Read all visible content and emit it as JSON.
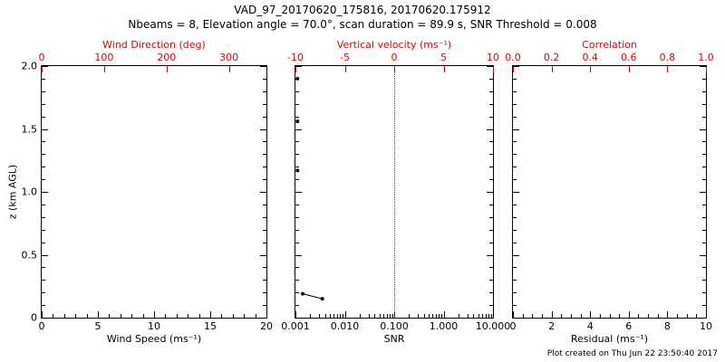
{
  "title": "VAD_97_20170620_175816, 20170620.175912",
  "subtitle": "Nbeams = 8, Elevation angle = 70.0°, scan duration = 89.9 s, SNR Threshold = 0.008",
  "footer": "Plot created on Thu Jun 22 23:50:40 2017",
  "y_axis_label": "z (km AGL)",
  "colors": {
    "axis": "#000000",
    "secondary_axis": "#e60000",
    "reference_line": "#e60000",
    "data": "#000000",
    "background": "#ffffff"
  },
  "chart_data": [
    {
      "type": "scatter",
      "name": "wind-speed-panel",
      "xlabel": "Wind Speed (ms⁻¹)",
      "x_range": [
        0,
        20
      ],
      "x_ticks": [
        0,
        5,
        10,
        15,
        20
      ],
      "x_tick_labels": [
        "0",
        "5",
        "10",
        "15",
        "20"
      ],
      "x_minor_step": 1,
      "top_label": "Wind Direction (deg)",
      "top_range": [
        0,
        360
      ],
      "top_ticks": [
        0,
        100,
        200,
        300
      ],
      "top_tick_labels": [
        "0",
        "100",
        "200",
        "300"
      ],
      "y_range": [
        0,
        2
      ],
      "y_ticks": [
        0,
        0.5,
        1,
        1.5,
        2
      ],
      "y_tick_labels": [
        "0",
        "0.5",
        "1.0",
        "1.5",
        "2.0"
      ],
      "y_minor_step": 0.1,
      "show_y_labels": true,
      "points": []
    },
    {
      "type": "scatter",
      "name": "snr-panel",
      "xlabel": "SNR",
      "x_scale": "log",
      "x_range": [
        0.001,
        10
      ],
      "x_ticks": [
        0.001,
        0.01,
        0.1,
        1,
        10
      ],
      "x_tick_labels": [
        "0.001",
        "0.010",
        "0.100",
        "1.000",
        "10.000"
      ],
      "top_label": "Vertical velocity (ms⁻¹)",
      "top_range": [
        -10,
        10
      ],
      "top_ticks": [
        -10,
        -5,
        0,
        5,
        10
      ],
      "top_tick_labels": [
        "-10",
        "-5",
        "0",
        "5",
        "10"
      ],
      "y_range": [
        0,
        2
      ],
      "y_ticks": [
        0,
        0.5,
        1,
        1.5,
        2
      ],
      "y_minor_step": 0.1,
      "show_y_labels": false,
      "reference_line_x": 0.1,
      "points": [
        {
          "x": 0.0011,
          "z": 1.9
        },
        {
          "x": 0.0011,
          "z": 1.56
        },
        {
          "x": 0.0011,
          "z": 1.17
        }
      ],
      "line_points": [
        {
          "x": 0.0014,
          "z": 0.19
        },
        {
          "x": 0.0035,
          "z": 0.15
        }
      ]
    },
    {
      "type": "scatter",
      "name": "residual-panel",
      "xlabel": "Residual (ms⁻¹)",
      "x_range": [
        0,
        10
      ],
      "x_ticks": [
        0,
        2,
        4,
        6,
        8,
        10
      ],
      "x_tick_labels": [
        "0",
        "2",
        "4",
        "6",
        "8",
        "10"
      ],
      "x_minor_step": 0.5,
      "top_label": "Correlation",
      "top_range": [
        0,
        1
      ],
      "top_ticks": [
        0,
        0.2,
        0.4,
        0.6,
        0.8,
        1
      ],
      "top_tick_labels": [
        "0.0",
        "0.2",
        "0.4",
        "0.6",
        "0.8",
        "1.0"
      ],
      "y_range": [
        0,
        2
      ],
      "y_ticks": [
        0,
        0.5,
        1,
        1.5,
        2
      ],
      "y_minor_step": 0.1,
      "show_y_labels": false,
      "points": []
    }
  ]
}
